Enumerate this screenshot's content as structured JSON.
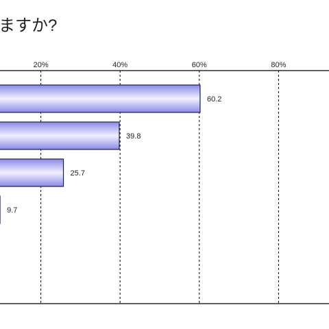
{
  "chart_data": {
    "type": "bar",
    "orientation": "horizontal",
    "title": "ますか?",
    "xlim": [
      0,
      100
    ],
    "xticks": [
      "20%",
      "40%",
      "60%",
      "80%"
    ],
    "xtick_values": [
      20,
      40,
      60,
      80
    ],
    "grid": "dashed vertical",
    "values": [
      60.2,
      39.8,
      25.7,
      9.7
    ],
    "value_labels": [
      "60.2",
      "39.8",
      "25.7",
      "9.7"
    ],
    "bar_fill": "gradient blue-white",
    "colors": {
      "bar_edge": "#1f1f4f",
      "bar_dark": "#8a8ae6",
      "bar_light": "#f0f0ff",
      "axis": "#000000",
      "grid": "#000000"
    }
  }
}
